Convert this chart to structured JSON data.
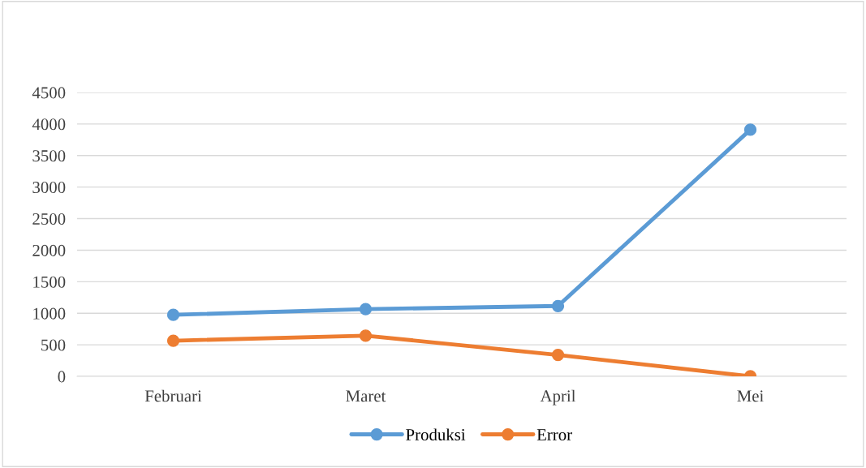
{
  "chart_data": {
    "type": "line",
    "categories": [
      "Februari",
      "Maret",
      "April",
      "Mei"
    ],
    "series": [
      {
        "name": "Produksi",
        "color": "#5b9bd5",
        "values": [
          975,
          1065,
          1115,
          3910
        ]
      },
      {
        "name": "Error",
        "color": "#ed7d31",
        "values": [
          565,
          645,
          340,
          0
        ]
      }
    ],
    "ylim": [
      0,
      4500
    ],
    "yticks": [
      0,
      500,
      1000,
      1500,
      2000,
      2500,
      3000,
      3500,
      4000,
      4500
    ],
    "grid": "y",
    "legend": "bottom",
    "marker": "circle",
    "line_style": "solid"
  }
}
